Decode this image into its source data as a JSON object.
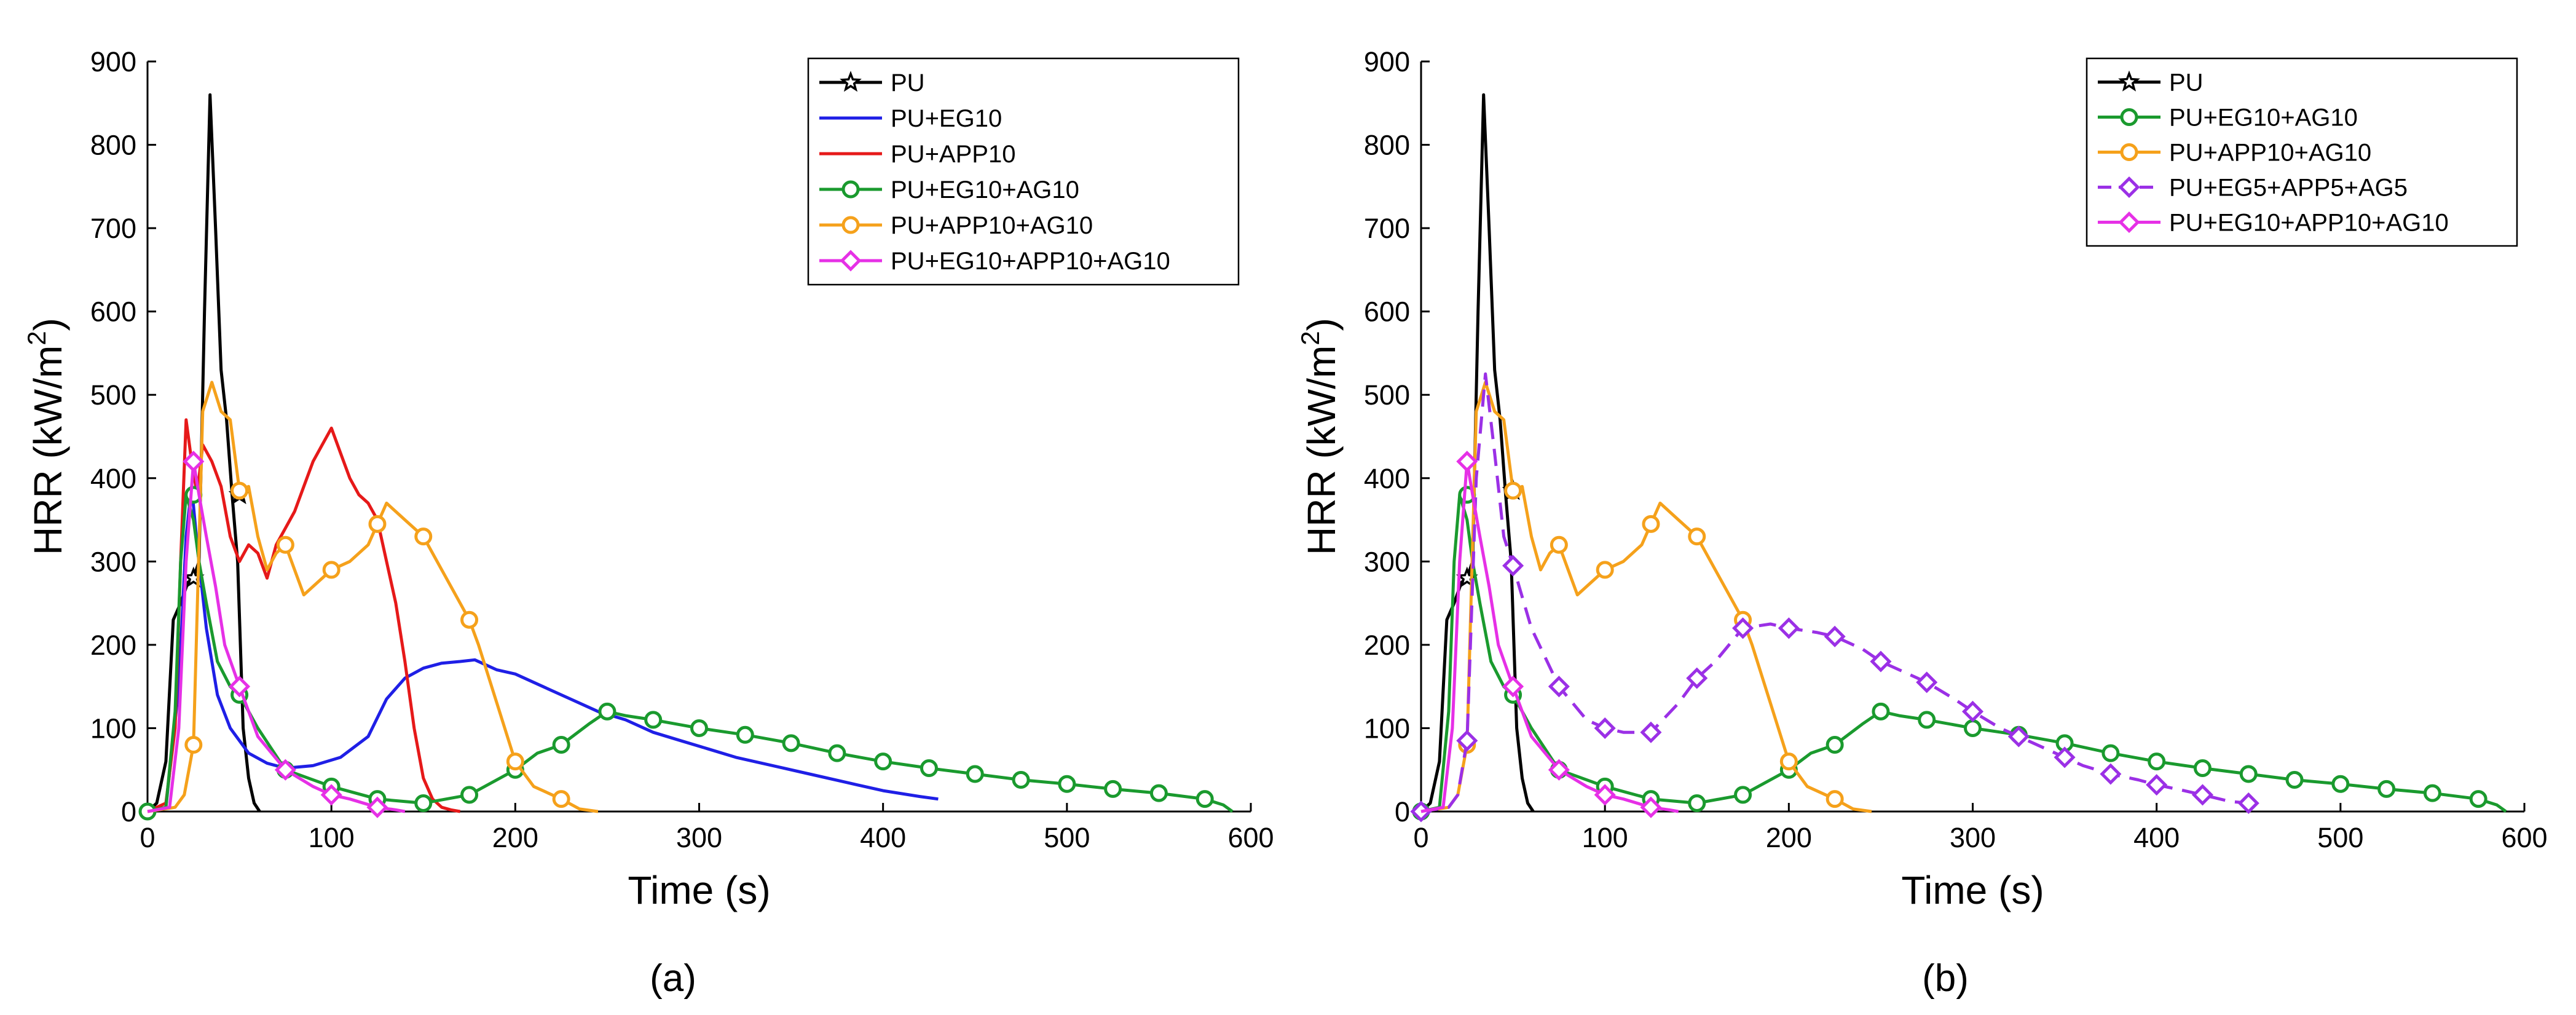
{
  "figure": {
    "panel_labels": [
      "(a)",
      "(b)"
    ]
  },
  "chart_data": [
    {
      "type": "line",
      "panel": "(a)",
      "title": "",
      "xlabel": "Time (s)",
      "ylabel": "HRR (kW/m2)",
      "ylabel_base": "HRR (kW/m",
      "ylabel_sup": "2",
      "ylabel_close": ")",
      "xlim": [
        0,
        600
      ],
      "ylim": [
        0,
        900
      ],
      "xticks": [
        0,
        100,
        200,
        300,
        400,
        500,
        600
      ],
      "yticks": [
        0,
        100,
        200,
        300,
        400,
        500,
        600,
        700,
        800,
        900
      ],
      "grid": false,
      "legend_position": "top-right",
      "series": [
        {
          "name": "PU",
          "color": "#000000",
          "marker": "star",
          "dashed": false,
          "x": [
            0,
            5,
            10,
            14,
            18,
            22,
            25,
            28,
            31,
            34,
            37,
            40,
            43,
            46,
            49,
            52,
            55,
            58,
            61
          ],
          "y": [
            0,
            10,
            60,
            230,
            250,
            275,
            280,
            300,
            600,
            860,
            700,
            530,
            470,
            380,
            300,
            100,
            40,
            10,
            0
          ],
          "markers_x": [
            25,
            50
          ],
          "markers_y": [
            280,
            380
          ]
        },
        {
          "name": "PU+EG10",
          "color": "#1f1fe6",
          "marker": "none",
          "dashed": false,
          "x": [
            0,
            10,
            17,
            21,
            24,
            27,
            32,
            38,
            45,
            55,
            65,
            75,
            90,
            105,
            120,
            130,
            140,
            150,
            160,
            170,
            178,
            190,
            200,
            215,
            230,
            245,
            260,
            275,
            290,
            305,
            320,
            340,
            360,
            380,
            400,
            420,
            430
          ],
          "y": [
            0,
            5,
            150,
            330,
            390,
            320,
            220,
            140,
            100,
            70,
            58,
            52,
            55,
            65,
            90,
            135,
            160,
            172,
            178,
            180,
            182,
            170,
            165,
            150,
            135,
            120,
            110,
            95,
            85,
            75,
            65,
            55,
            45,
            35,
            25,
            18,
            15
          ]
        },
        {
          "name": "PU+APP10",
          "color": "#e61919",
          "marker": "none",
          "dashed": false,
          "x": [
            0,
            10,
            15,
            18,
            21,
            24,
            27,
            30,
            35,
            40,
            45,
            50,
            55,
            60,
            65,
            70,
            75,
            80,
            85,
            90,
            95,
            100,
            105,
            110,
            115,
            120,
            125,
            130,
            135,
            140,
            145,
            150,
            155,
            160,
            165,
            170
          ],
          "y": [
            0,
            10,
            100,
            300,
            470,
            420,
            380,
            440,
            420,
            390,
            330,
            300,
            320,
            310,
            280,
            320,
            340,
            360,
            390,
            420,
            440,
            460,
            430,
            400,
            380,
            370,
            350,
            300,
            250,
            180,
            100,
            40,
            15,
            5,
            2,
            0
          ]
        },
        {
          "name": "PU+EG10+AG10",
          "color": "#1a9a2e",
          "marker": "circle",
          "dashed": false,
          "x": [
            0,
            10,
            15,
            18,
            21,
            25,
            28,
            32,
            38,
            45,
            50,
            60,
            75,
            100,
            125,
            150,
            175,
            200,
            212,
            225,
            240,
            250,
            260,
            275,
            300,
            325,
            350,
            375,
            400,
            425,
            450,
            475,
            500,
            525,
            550,
            575,
            585,
            590
          ],
          "y": [
            0,
            5,
            120,
            300,
            380,
            350,
            300,
            250,
            180,
            150,
            140,
            100,
            50,
            30,
            15,
            10,
            20,
            50,
            70,
            80,
            105,
            120,
            115,
            110,
            100,
            92,
            82,
            70,
            60,
            52,
            45,
            38,
            33,
            27,
            22,
            15,
            8,
            0
          ],
          "markers_x": [
            0,
            25,
            50,
            75,
            100,
            125,
            150,
            175,
            200,
            225,
            250,
            275,
            300,
            325,
            350,
            375,
            400,
            425,
            450,
            475,
            500,
            525,
            550,
            575
          ],
          "markers_y": [
            0,
            380,
            140,
            50,
            30,
            15,
            10,
            20,
            50,
            80,
            120,
            110,
            100,
            92,
            82,
            70,
            60,
            52,
            45,
            38,
            33,
            27,
            22,
            15
          ]
        },
        {
          "name": "PU+APP10+AG10",
          "color": "#f5a11b",
          "marker": "circle",
          "dashed": false,
          "x": [
            0,
            15,
            20,
            25,
            30,
            35,
            40,
            45,
            50,
            55,
            60,
            65,
            70,
            75,
            80,
            85,
            90,
            100,
            110,
            120,
            125,
            130,
            140,
            150,
            160,
            170,
            175,
            180,
            190,
            200,
            210,
            225,
            235,
            245
          ],
          "y": [
            0,
            5,
            20,
            80,
            480,
            515,
            480,
            470,
            385,
            390,
            330,
            290,
            310,
            320,
            290,
            260,
            270,
            290,
            300,
            320,
            345,
            370,
            350,
            330,
            290,
            250,
            230,
            200,
            130,
            60,
            30,
            15,
            3,
            0
          ],
          "markers_x": [
            25,
            50,
            75,
            100,
            125,
            150,
            175,
            200,
            225
          ],
          "markers_y": [
            80,
            385,
            320,
            290,
            345,
            330,
            230,
            60,
            15
          ]
        },
        {
          "name": "PU+EG10+APP10+AG10",
          "color": "#e630e6",
          "marker": "diamond",
          "dashed": false,
          "x": [
            0,
            12,
            17,
            21,
            25,
            28,
            32,
            37,
            42,
            50,
            60,
            75,
            90,
            100,
            110,
            125,
            135,
            140
          ],
          "y": [
            0,
            5,
            100,
            300,
            420,
            380,
            330,
            270,
            200,
            150,
            90,
            50,
            30,
            20,
            15,
            5,
            2,
            0
          ],
          "markers_x": [
            25,
            50,
            75,
            100,
            125
          ],
          "markers_y": [
            420,
            150,
            50,
            20,
            5
          ]
        }
      ]
    },
    {
      "type": "line",
      "panel": "(b)",
      "title": "",
      "xlabel": "Time (s)",
      "ylabel": "HRR (kW/m2)",
      "ylabel_base": "HRR (kW/m",
      "ylabel_sup": "2",
      "ylabel_close": ")",
      "xlim": [
        0,
        600
      ],
      "ylim": [
        0,
        900
      ],
      "xticks": [
        0,
        100,
        200,
        300,
        400,
        500,
        600
      ],
      "yticks": [
        0,
        100,
        200,
        300,
        400,
        500,
        600,
        700,
        800,
        900
      ],
      "grid": false,
      "legend_position": "top-right",
      "series": [
        {
          "name": "PU",
          "color": "#000000",
          "marker": "star",
          "dashed": false,
          "x": [
            0,
            5,
            10,
            14,
            18,
            22,
            25,
            28,
            31,
            34,
            37,
            40,
            43,
            46,
            49,
            52,
            55,
            58,
            61
          ],
          "y": [
            0,
            10,
            60,
            230,
            250,
            275,
            280,
            300,
            600,
            860,
            700,
            530,
            470,
            380,
            300,
            100,
            40,
            10,
            0
          ],
          "markers_x": [
            25,
            50
          ],
          "markers_y": [
            280,
            385
          ]
        },
        {
          "name": "PU+EG10+AG10",
          "color": "#1a9a2e",
          "marker": "circle",
          "dashed": false,
          "x": [
            0,
            10,
            15,
            18,
            21,
            25,
            28,
            32,
            38,
            45,
            50,
            60,
            75,
            100,
            125,
            150,
            175,
            200,
            212,
            225,
            240,
            250,
            260,
            275,
            300,
            325,
            350,
            375,
            400,
            425,
            450,
            475,
            500,
            525,
            550,
            575,
            585,
            590
          ],
          "y": [
            0,
            5,
            120,
            300,
            380,
            350,
            300,
            250,
            180,
            150,
            140,
            100,
            50,
            30,
            15,
            10,
            20,
            50,
            70,
            80,
            105,
            120,
            115,
            110,
            100,
            92,
            82,
            70,
            60,
            52,
            45,
            38,
            33,
            27,
            22,
            15,
            8,
            0
          ],
          "markers_x": [
            0,
            25,
            50,
            75,
            100,
            125,
            150,
            175,
            200,
            225,
            250,
            275,
            300,
            325,
            350,
            375,
            400,
            425,
            450,
            475,
            500,
            525,
            550,
            575
          ],
          "markers_y": [
            0,
            380,
            140,
            50,
            30,
            15,
            10,
            20,
            50,
            80,
            120,
            110,
            100,
            92,
            82,
            70,
            60,
            52,
            45,
            38,
            33,
            27,
            22,
            15
          ]
        },
        {
          "name": "PU+APP10+AG10",
          "color": "#f5a11b",
          "marker": "circle",
          "dashed": false,
          "x": [
            0,
            15,
            20,
            25,
            30,
            35,
            40,
            45,
            50,
            55,
            60,
            65,
            70,
            75,
            80,
            85,
            90,
            100,
            110,
            120,
            125,
            130,
            140,
            150,
            160,
            170,
            175,
            180,
            190,
            200,
            210,
            225,
            235,
            245
          ],
          "y": [
            0,
            5,
            20,
            80,
            480,
            515,
            480,
            470,
            385,
            390,
            330,
            290,
            310,
            320,
            290,
            260,
            270,
            290,
            300,
            320,
            345,
            370,
            350,
            330,
            290,
            250,
            230,
            200,
            130,
            60,
            30,
            15,
            3,
            0
          ],
          "markers_x": [
            25,
            50,
            75,
            100,
            125,
            150,
            175,
            200,
            225
          ],
          "markers_y": [
            80,
            385,
            320,
            290,
            345,
            330,
            230,
            60,
            15
          ]
        },
        {
          "name": "PU+EG5+APP5+AG5",
          "color": "#9b30e6",
          "marker": "diamond",
          "dashed": true,
          "x": [
            0,
            15,
            20,
            25,
            30,
            35,
            40,
            45,
            50,
            60,
            75,
            90,
            100,
            110,
            125,
            140,
            150,
            160,
            175,
            190,
            200,
            215,
            225,
            240,
            250,
            265,
            275,
            290,
            300,
            315,
            325,
            340,
            350,
            360,
            375,
            390,
            400,
            415,
            425,
            440,
            450
          ],
          "y": [
            0,
            5,
            20,
            85,
            400,
            525,
            430,
            330,
            295,
            220,
            150,
            110,
            100,
            95,
            95,
            130,
            160,
            180,
            220,
            225,
            220,
            215,
            210,
            195,
            180,
            165,
            155,
            135,
            120,
            100,
            90,
            75,
            65,
            55,
            45,
            38,
            32,
            25,
            20,
            12,
            10
          ],
          "markers_x": [
            0,
            25,
            50,
            75,
            100,
            125,
            150,
            175,
            200,
            225,
            250,
            275,
            300,
            325,
            350,
            375,
            400,
            425,
            450
          ],
          "markers_y": [
            0,
            85,
            295,
            150,
            100,
            95,
            160,
            220,
            220,
            210,
            180,
            155,
            120,
            90,
            65,
            45,
            32,
            20,
            10
          ]
        },
        {
          "name": "PU+EG10+APP10+AG10",
          "color": "#e630e6",
          "marker": "diamond",
          "dashed": false,
          "x": [
            0,
            12,
            17,
            21,
            25,
            28,
            32,
            37,
            42,
            50,
            60,
            75,
            90,
            100,
            110,
            125,
            135,
            140
          ],
          "y": [
            0,
            5,
            100,
            300,
            420,
            380,
            330,
            270,
            200,
            150,
            90,
            50,
            30,
            20,
            15,
            5,
            2,
            0
          ],
          "markers_x": [
            25,
            50,
            75,
            100,
            125
          ],
          "markers_y": [
            420,
            150,
            50,
            20,
            5
          ]
        }
      ]
    }
  ]
}
